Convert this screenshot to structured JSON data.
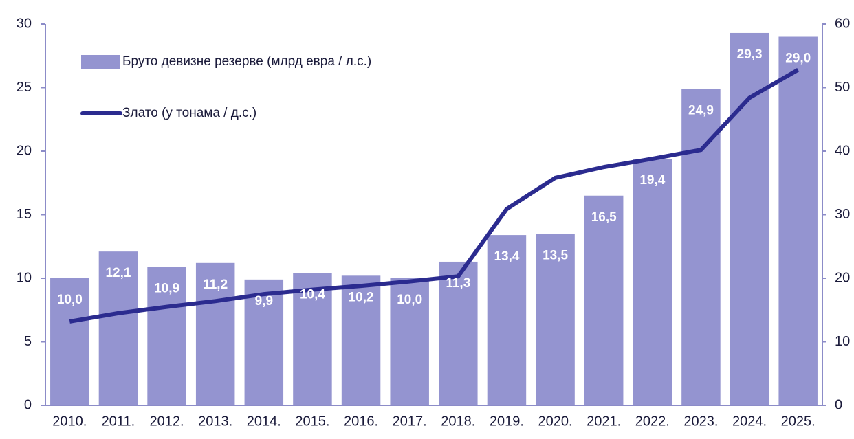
{
  "chart_data": {
    "type": "bar_line",
    "categories": [
      "2010.",
      "2011.",
      "2012.",
      "2013.",
      "2014.",
      "2015.",
      "2016.",
      "2017.",
      "2018.",
      "2019.",
      "2020.",
      "2021.",
      "2022.",
      "2023.",
      "2024.",
      "2025."
    ],
    "series": [
      {
        "name": "Бруто девизне резерве (млрд евра / л.с.)",
        "type": "bar",
        "color": "#9494d0",
        "values": [
          10.0,
          12.1,
          10.9,
          11.2,
          9.9,
          10.4,
          10.2,
          10.0,
          11.3,
          13.4,
          13.5,
          16.5,
          19.4,
          24.9,
          29.3,
          29.0
        ],
        "value_labels": [
          "10,0",
          "12,1",
          "10,9",
          "11,2",
          "9,9",
          "10,4",
          "10,2",
          "10,0",
          "11,3",
          "13,4",
          "13,5",
          "16,5",
          "19,4",
          "24,9",
          "29,3",
          "29,0"
        ]
      },
      {
        "name": "Злато (у тонама / д.с.)",
        "type": "line",
        "axis": "y2",
        "color": "#2b2b8f",
        "values": [
          13.2,
          14.5,
          15.5,
          16.4,
          17.5,
          18.2,
          18.8,
          19.5,
          20.3,
          30.9,
          35.8,
          37.5,
          38.8,
          40.2,
          48.4,
          52.8
        ]
      }
    ],
    "ylim": [
      0,
      30
    ],
    "yticks": [
      0,
      5,
      10,
      15,
      20,
      25,
      30
    ],
    "y2lim": [
      0,
      60
    ],
    "y2ticks": [
      0,
      10,
      20,
      30,
      40,
      50,
      60
    ],
    "legend": "upper left"
  }
}
